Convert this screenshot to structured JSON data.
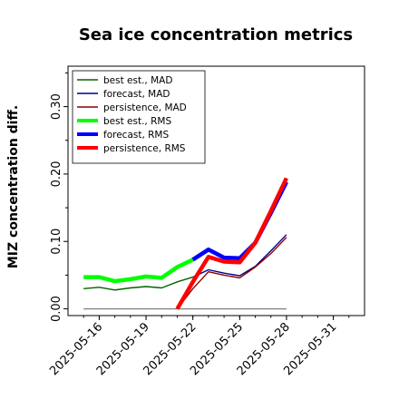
{
  "chart_data": {
    "type": "line",
    "title": "Sea ice concentration metrics",
    "xlabel": "",
    "ylabel": "MIZ concentration diff.",
    "xlim": [
      "2025-05-14",
      "2025-06-02"
    ],
    "ylim": [
      -0.01,
      0.36
    ],
    "yticks": [
      0.0,
      0.1,
      0.2,
      0.3
    ],
    "ytick_labels": [
      "0.00",
      "0.10",
      "0.20",
      "0.30"
    ],
    "xticks": [
      "2025-05-16",
      "2025-05-19",
      "2025-05-22",
      "2025-05-25",
      "2025-05-28",
      "2025-05-31"
    ],
    "xtick_labels": [
      "2025-05-16",
      "2025-05-19",
      "2025-05-22",
      "2025-05-25",
      "2025-05-28",
      "2025-05-31"
    ],
    "highlighted_xtick": "2025-05-22",
    "highlight_color": "#228B22",
    "grid": false,
    "legend_position": "upper-left",
    "series": [
      {
        "name": "best est., MAD",
        "color": "#006400",
        "width": 1.4,
        "x": [
          "2025-05-15",
          "2025-05-16",
          "2025-05-17",
          "2025-05-18",
          "2025-05-19",
          "2025-05-20",
          "2025-05-21",
          "2025-05-22"
        ],
        "values": [
          0.03,
          0.032,
          0.028,
          0.031,
          0.033,
          0.031,
          0.04,
          0.047
        ]
      },
      {
        "name": "forecast,  MAD",
        "color": "#00008B",
        "width": 1.4,
        "x": [
          "2025-05-22",
          "2025-05-23",
          "2025-05-24",
          "2025-05-25",
          "2025-05-26",
          "2025-05-27",
          "2025-05-28"
        ],
        "values": [
          0.047,
          0.058,
          0.053,
          0.049,
          0.063,
          0.086,
          0.11
        ]
      },
      {
        "name": "persistence, MAD",
        "color": "#8B0000",
        "width": 1.4,
        "x": [
          "2025-05-21",
          "2025-05-22",
          "2025-05-23",
          "2025-05-24",
          "2025-05-25",
          "2025-05-26",
          "2025-05-27",
          "2025-05-28"
        ],
        "values": [
          0.0,
          0.03,
          0.055,
          0.05,
          0.046,
          0.062,
          0.082,
          0.106
        ]
      },
      {
        "name": "best est., RMS",
        "color": "#00FF00",
        "width": 4.5,
        "x": [
          "2025-05-15",
          "2025-05-16",
          "2025-05-17",
          "2025-05-18",
          "2025-05-19",
          "2025-05-20",
          "2025-05-21",
          "2025-05-22"
        ],
        "values": [
          0.047,
          0.047,
          0.041,
          0.044,
          0.048,
          0.046,
          0.062,
          0.073
        ]
      },
      {
        "name": "forecast,  RMS",
        "color": "#0000FF",
        "width": 4.5,
        "x": [
          "2025-05-22",
          "2025-05-23",
          "2025-05-24",
          "2025-05-25",
          "2025-05-26",
          "2025-05-27",
          "2025-05-28"
        ],
        "values": [
          0.073,
          0.088,
          0.076,
          0.075,
          0.098,
          0.142,
          0.188
        ]
      },
      {
        "name": "persistence, RMS",
        "color": "#FF0000",
        "width": 4.5,
        "x": [
          "2025-05-21",
          "2025-05-22",
          "2025-05-23",
          "2025-05-24",
          "2025-05-25",
          "2025-05-26",
          "2025-05-27",
          "2025-05-28"
        ],
        "values": [
          0.0,
          0.04,
          0.077,
          0.07,
          0.069,
          0.098,
          0.145,
          0.194
        ]
      },
      {
        "name": "",
        "color": "#808080",
        "width": 1.2,
        "x": [
          "2025-05-15",
          "2025-05-28"
        ],
        "values": [
          0.0,
          0.0
        ]
      }
    ]
  }
}
